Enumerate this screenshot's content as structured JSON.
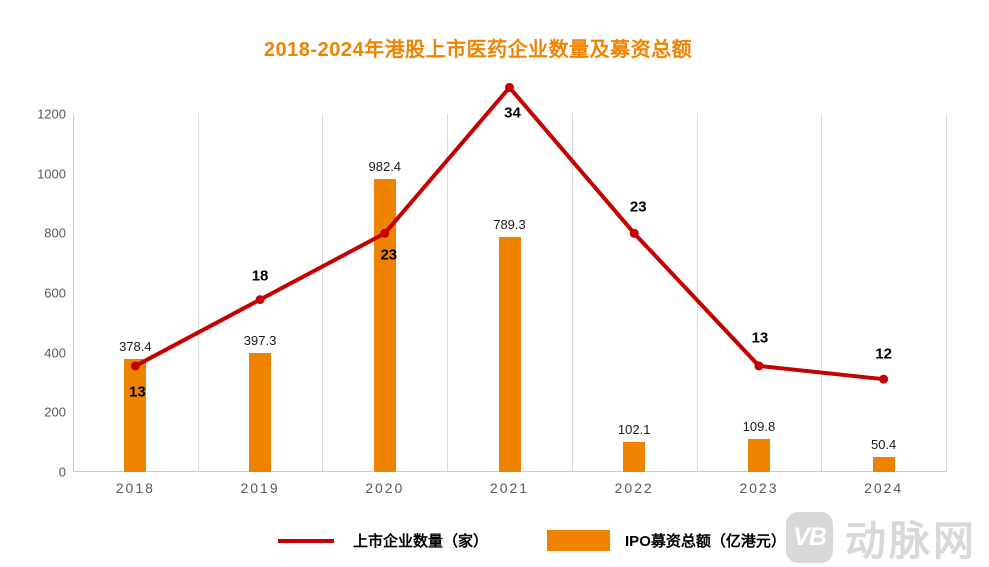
{
  "header": {
    "title": "2018-2024年港股上市医药企业数量及募资总额"
  },
  "chart_data": {
    "type": "bar+line",
    "title": "2018-2024年港股上市医药企业数量及募资总额",
    "categories": [
      "2018",
      "2019",
      "2020",
      "2021",
      "2022",
      "2023",
      "2024"
    ],
    "series": [
      {
        "name": "上市企业数量（家）",
        "type": "line",
        "values": [
          13,
          18,
          23,
          34,
          23,
          13,
          12
        ],
        "color": "#C40000",
        "y_axis": "secondary-hidden"
      },
      {
        "name": "IPO募资总额（亿港元）",
        "type": "bar",
        "values": [
          378.4,
          397.3,
          982.4,
          789.3,
          102.1,
          109.8,
          50.4
        ],
        "color": "#EF8200",
        "y_axis": "primary"
      }
    ],
    "xlabel": "",
    "ylabel": "",
    "ylim": [
      0,
      1200
    ],
    "yticks": [
      0,
      200,
      400,
      600,
      800,
      1000,
      1200
    ],
    "y2lim_estimated": [
      5,
      32
    ],
    "grid": "vertical-category-separators-only",
    "legend_position": "bottom"
  },
  "legend": {
    "items": [
      {
        "label": "上市企业数量（家）",
        "swatch": "line",
        "color": "#C40000"
      },
      {
        "label": "IPO募资总额（亿港元）",
        "swatch": "bar",
        "color": "#EF8200"
      }
    ]
  },
  "watermark": {
    "logo_text": "VB",
    "brand": "动脉网"
  },
  "colors": {
    "title": "#F08300",
    "bar": "#EF8200",
    "line": "#C40000",
    "axis_text": "#595959",
    "gridline": "#D9D9D9",
    "axis_line": "#C9C9C9",
    "bar_value_label": "#1A1A1A",
    "line_value_label": "#000000",
    "watermark": "#D8D8D8"
  }
}
